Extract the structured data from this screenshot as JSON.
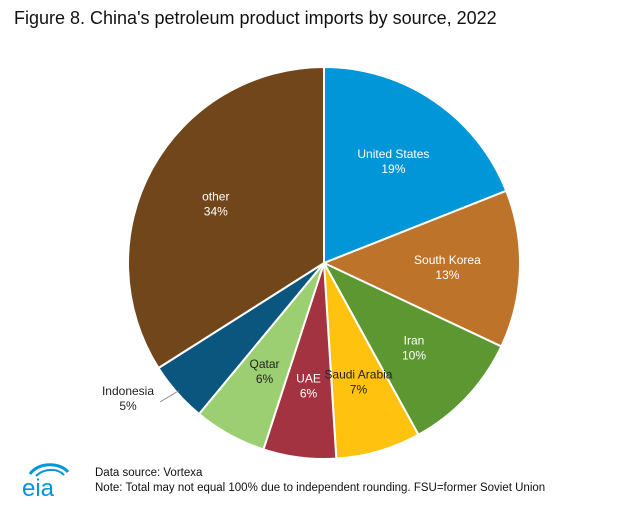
{
  "title": "Figure 8. China's petroleum product imports by source, 2022",
  "chart_data": {
    "type": "pie",
    "title": "Figure 8. China's petroleum product imports by source, 2022",
    "slices": [
      {
        "label": "United States",
        "pct_label": "19%",
        "value": 19,
        "color": "#0096d7",
        "text_color": "#ffffff"
      },
      {
        "label": "South Korea",
        "pct_label": "13%",
        "value": 13,
        "color": "#bd732a",
        "text_color": "#ffffff"
      },
      {
        "label": "Iran",
        "pct_label": "10%",
        "value": 10,
        "color": "#5d9732",
        "text_color": "#ffffff"
      },
      {
        "label": "Saudi Arabia",
        "pct_label": "7%",
        "value": 7,
        "color": "#ffc20e",
        "text_color": "#222222"
      },
      {
        "label": "UAE",
        "pct_label": "6%",
        "value": 6,
        "color": "#a33340",
        "text_color": "#ffffff"
      },
      {
        "label": "Qatar",
        "pct_label": "6%",
        "value": 6,
        "color": "#9ccf72",
        "text_color": "#222222"
      },
      {
        "label": "Indonesia",
        "pct_label": "5%",
        "value": 5,
        "color": "#0b567f",
        "text_color": "#222222",
        "outside": true
      },
      {
        "label": "other",
        "pct_label": "34%",
        "value": 34,
        "color": "#71461b",
        "text_color": "#ffffff"
      }
    ]
  },
  "footer": {
    "source": "Data source: Vortexa",
    "note": "Note: Total may not equal 100% due to independent rounding. FSU=former Soviet Union"
  },
  "logo": {
    "text": "eia",
    "color": "#0096d7"
  }
}
